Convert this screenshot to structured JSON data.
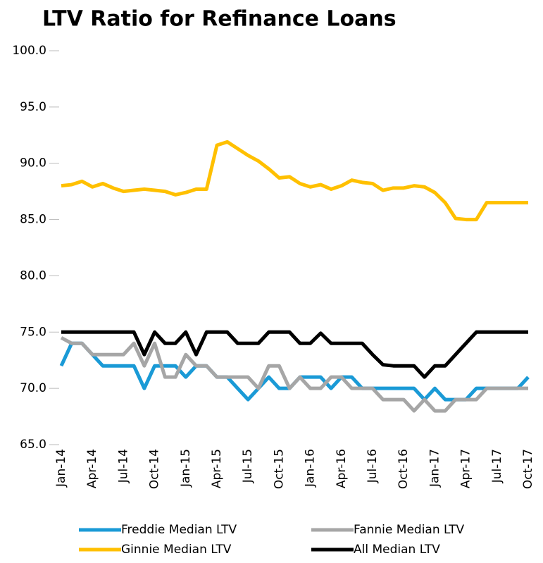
{
  "chart_data": {
    "type": "line",
    "title": "LTV Ratio for Refinance Loans",
    "categories": [
      "Jan-14",
      null,
      null,
      "Apr-14",
      null,
      null,
      "Jul-14",
      null,
      null,
      "Oct-14",
      null,
      null,
      "Jan-15",
      null,
      null,
      "Apr-15",
      null,
      null,
      "Jul-15",
      null,
      null,
      "Oct-15",
      null,
      null,
      "Jan-16",
      null,
      null,
      "Apr-16",
      null,
      null,
      "Jul-16",
      null,
      null,
      "Oct-16",
      null,
      null,
      "Jan-17",
      null,
      null,
      "Apr-17",
      null,
      null,
      "Jul-17",
      null,
      null,
      "Oct-17"
    ],
    "series": [
      {
        "name": "Freddie Median LTV",
        "color": "#1a9ad6",
        "values": [
          72,
          74,
          74,
          73,
          72,
          72,
          72,
          72,
          70,
          72,
          72,
          72,
          71,
          72,
          72,
          71,
          71,
          70,
          69,
          70,
          71,
          70,
          70,
          71,
          71,
          71,
          70,
          71,
          71,
          70,
          70,
          70,
          70,
          70,
          70,
          69,
          70,
          69,
          69,
          69,
          70,
          70,
          70,
          70,
          70,
          71
        ]
      },
      {
        "name": "Fannie Median LTV",
        "color": "#a6a6a6",
        "values": [
          74.5,
          74,
          74,
          73,
          73,
          73,
          73,
          74,
          72,
          74,
          71,
          71,
          73,
          72,
          72,
          71,
          71,
          71,
          71,
          70,
          72,
          72,
          70,
          71,
          70,
          70,
          71,
          71,
          70,
          70,
          70,
          69,
          69,
          69,
          68,
          69,
          68,
          68,
          69,
          69,
          69,
          70,
          70,
          70,
          70,
          70
        ]
      },
      {
        "name": "Ginnie Median LTV",
        "color": "#ffc000",
        "values": [
          88.0,
          88.1,
          88.4,
          87.9,
          88.2,
          87.8,
          87.5,
          87.6,
          87.7,
          87.6,
          87.5,
          87.2,
          87.4,
          87.7,
          87.7,
          91.6,
          91.9,
          91.3,
          90.7,
          90.2,
          89.5,
          88.7,
          88.8,
          88.2,
          87.9,
          88.1,
          87.7,
          88.0,
          88.5,
          88.3,
          88.2,
          87.6,
          87.8,
          87.8,
          88.0,
          87.9,
          87.4,
          86.5,
          85.1,
          85.0,
          85.0,
          86.5,
          86.5,
          86.5,
          86.5,
          86.5
        ]
      },
      {
        "name": "All Median LTV",
        "color": "#000000",
        "values": [
          75,
          75,
          75,
          75,
          75,
          75,
          75,
          75,
          73,
          75,
          74,
          74,
          75,
          73,
          75,
          75,
          75,
          74,
          74,
          74,
          75,
          75,
          75,
          74,
          74,
          74.9,
          74,
          74,
          74,
          74,
          73,
          72.1,
          72,
          72,
          72,
          71,
          72,
          72,
          73,
          74,
          75,
          75,
          75,
          75,
          75,
          75
        ]
      }
    ],
    "ylim": [
      65,
      100
    ],
    "yticks": [
      {
        "value": 65,
        "label": "65.0"
      },
      {
        "value": 70,
        "label": "70.0"
      },
      {
        "value": 75,
        "label": "75.0"
      },
      {
        "value": 80,
        "label": "80.0"
      },
      {
        "value": 85,
        "label": "85.0"
      },
      {
        "value": 90,
        "label": "90.0"
      },
      {
        "value": 95,
        "label": "95.0"
      },
      {
        "value": 100,
        "label": "100.0"
      }
    ],
    "grid": false
  }
}
